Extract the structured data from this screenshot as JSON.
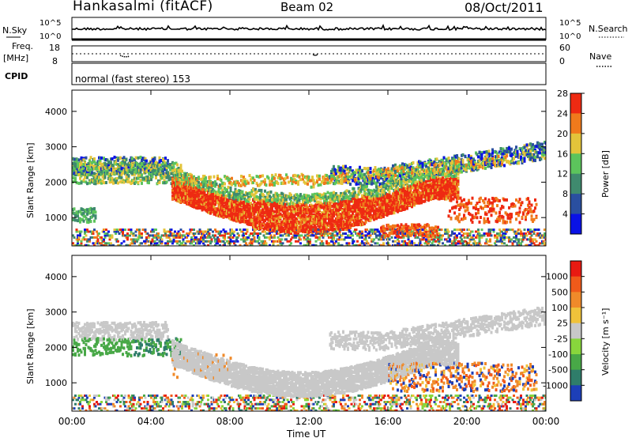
{
  "header": {
    "station": "Hankasalmi (fitACF)",
    "beam": "Beam 02",
    "date": "08/Oct/2011"
  },
  "top_panels": {
    "nsky_label": "N.Sky",
    "nsky_ticks": [
      "10^5",
      "10^0"
    ],
    "nsearch_label": "N.Search",
    "nsearch_ticks": [
      "10^5",
      "10^0"
    ],
    "freq_label_1": "Freq.",
    "freq_label_2": "[MHz]",
    "freq_ticks": [
      "18",
      "8"
    ],
    "nave_label": "Nave",
    "nave_ticks": [
      "60",
      "0"
    ],
    "cpid_label": "CPID",
    "cpid_text": "normal (fast stereo) 153"
  },
  "chart_data": [
    {
      "type": "heatmap",
      "name": "power",
      "ylabel": "Slant Range [km]",
      "ylim": [
        200,
        4600
      ],
      "yticks": [
        1000,
        2000,
        3000,
        4000
      ],
      "xlim": [
        0,
        24
      ],
      "colorbar_label": "Power [dB]",
      "colorbar_ticks": [
        "4",
        "8",
        "12",
        "16",
        "20",
        "24",
        "28"
      ],
      "colors": [
        "#0a12e6",
        "#2a4fa0",
        "#3f8a6e",
        "#5cc45c",
        "#e3c43a",
        "#f07a1c",
        "#ee2a12"
      ]
    },
    {
      "type": "heatmap",
      "name": "velocity",
      "ylabel": "Slant Range [km]",
      "ylim": [
        200,
        4600
      ],
      "yticks": [
        1000,
        2000,
        3000,
        4000
      ],
      "xlim": [
        0,
        24
      ],
      "xticks": [
        "00:00",
        "04:00",
        "08:00",
        "12:00",
        "16:00",
        "20:00",
        "00:00"
      ],
      "xlabel": "Time UT",
      "colorbar_label": "Velocity [m s⁻¹]",
      "colorbar_ticks": [
        "1000",
        "500",
        "100",
        "25",
        "-25",
        "-100",
        "-500",
        "-1000"
      ],
      "colors": [
        "#1d3fb8",
        "#2f7d6a",
        "#48a847",
        "#88d63c",
        "#c8c8c8",
        "#f0c23a",
        "#f08a2a",
        "#f05a1a",
        "#e81a12"
      ]
    }
  ]
}
